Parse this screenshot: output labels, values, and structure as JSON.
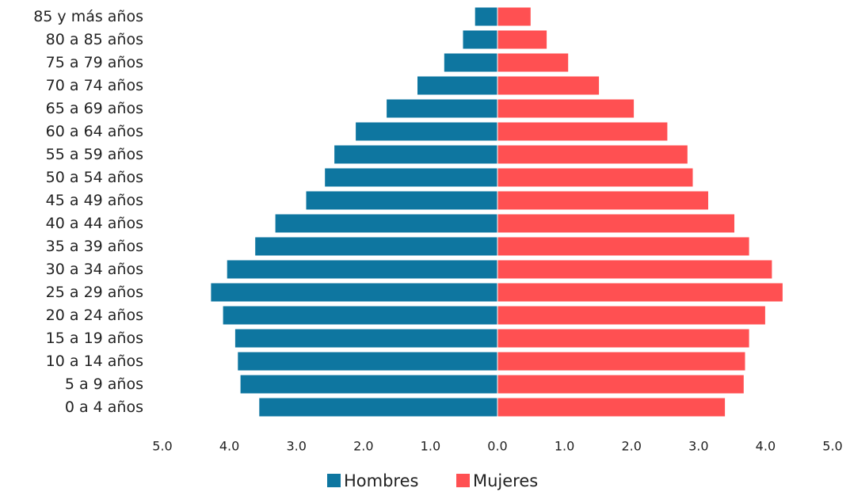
{
  "chart_data": {
    "type": "bar",
    "orientation": "horizontal",
    "layout": "population-pyramid",
    "categories": [
      "85 y más años",
      "80 a 85 años",
      "75 a 79 años",
      "70 a 74 años",
      "65 a 69 años",
      "60 a 64 años",
      "55 a 59 años",
      "50 a 54 años",
      "45 a 49 años",
      "40 a 44 años",
      "35 a 39 años",
      "30 a 34 años",
      "25 a 29 años",
      "20 a 24 años",
      "15 a 19 años",
      "10 a 14 años",
      "5 a 9 años",
      "0 a 4 años"
    ],
    "series": [
      {
        "name": "Hombres",
        "color": "#0E76A0",
        "side": "left",
        "values": [
          0.34,
          0.52,
          0.8,
          1.2,
          1.66,
          2.12,
          2.44,
          2.58,
          2.86,
          3.32,
          3.62,
          4.04,
          4.28,
          4.1,
          3.92,
          3.88,
          3.84,
          3.56
        ]
      },
      {
        "name": "Mujeres",
        "color": "#FF5052",
        "side": "right",
        "values": [
          0.5,
          0.74,
          1.06,
          1.52,
          2.04,
          2.54,
          2.84,
          2.92,
          3.15,
          3.54,
          3.76,
          4.1,
          4.26,
          4.0,
          3.76,
          3.7,
          3.68,
          3.4
        ]
      }
    ],
    "xlim": [
      -5,
      5
    ],
    "x_ticks": [
      -5,
      -4,
      -3,
      -2,
      -1,
      0,
      1,
      2,
      3,
      4,
      5
    ],
    "x_tick_labels": [
      "5.0",
      "4.0",
      "3.0",
      "2.0",
      "1.0",
      "0.0",
      "1.0",
      "2.0",
      "3.0",
      "4.0",
      "5.0"
    ],
    "grid": false,
    "legend_position": "bottom-center",
    "title": "",
    "xlabel": "",
    "ylabel": ""
  }
}
